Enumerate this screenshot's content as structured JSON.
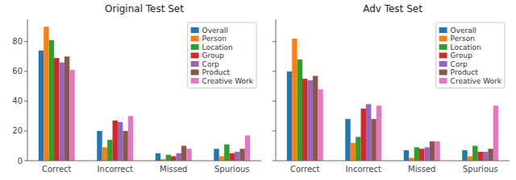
{
  "chart_data": [
    {
      "type": "bar",
      "title": "Original Test Set",
      "categories": [
        "Correct",
        "Incorrect",
        "Missed",
        "Spurious"
      ],
      "series": [
        {
          "name": "Overall",
          "color": "#1f77b4",
          "values": [
            74,
            20,
            5,
            8
          ]
        },
        {
          "name": "Person",
          "color": "#ff7f0e",
          "values": [
            90,
            9,
            1,
            3
          ]
        },
        {
          "name": "Location",
          "color": "#2ca02c",
          "values": [
            81,
            14,
            4,
            11
          ]
        },
        {
          "name": "Group",
          "color": "#d62728",
          "values": [
            69,
            27,
            3,
            5
          ]
        },
        {
          "name": "Corp",
          "color": "#9467bd",
          "values": [
            66,
            26,
            5,
            6
          ]
        },
        {
          "name": "Product",
          "color": "#8c564b",
          "values": [
            70,
            20,
            10,
            8
          ]
        },
        {
          "name": "Creative Work",
          "color": "#e377c2",
          "values": [
            61,
            30,
            8,
            17
          ]
        }
      ],
      "ylim": [
        0,
        95
      ],
      "yticks": [
        0,
        20,
        40,
        60,
        80
      ],
      "legend": "upper right"
    },
    {
      "type": "bar",
      "title": "Adv Test Set",
      "categories": [
        "Correct",
        "Incorrect",
        "Missed",
        "Spurious"
      ],
      "series": [
        {
          "name": "Overall",
          "color": "#1f77b4",
          "values": [
            60,
            28,
            7,
            7
          ]
        },
        {
          "name": "Person",
          "color": "#ff7f0e",
          "values": [
            82,
            12,
            2,
            3
          ]
        },
        {
          "name": "Location",
          "color": "#2ca02c",
          "values": [
            68,
            16,
            9,
            10
          ]
        },
        {
          "name": "Group",
          "color": "#d62728",
          "values": [
            55,
            35,
            8,
            6
          ]
        },
        {
          "name": "Corp",
          "color": "#9467bd",
          "values": [
            54,
            38,
            9,
            6
          ]
        },
        {
          "name": "Product",
          "color": "#8c564b",
          "values": [
            57,
            28,
            13,
            8
          ]
        },
        {
          "name": "Creative Work",
          "color": "#e377c2",
          "values": [
            48,
            37,
            13,
            37
          ]
        }
      ],
      "ylim": [
        0,
        95
      ],
      "yticks": [
        0,
        20,
        40,
        60,
        80
      ],
      "legend": "upper right",
      "tick_labels": "x"
    }
  ]
}
